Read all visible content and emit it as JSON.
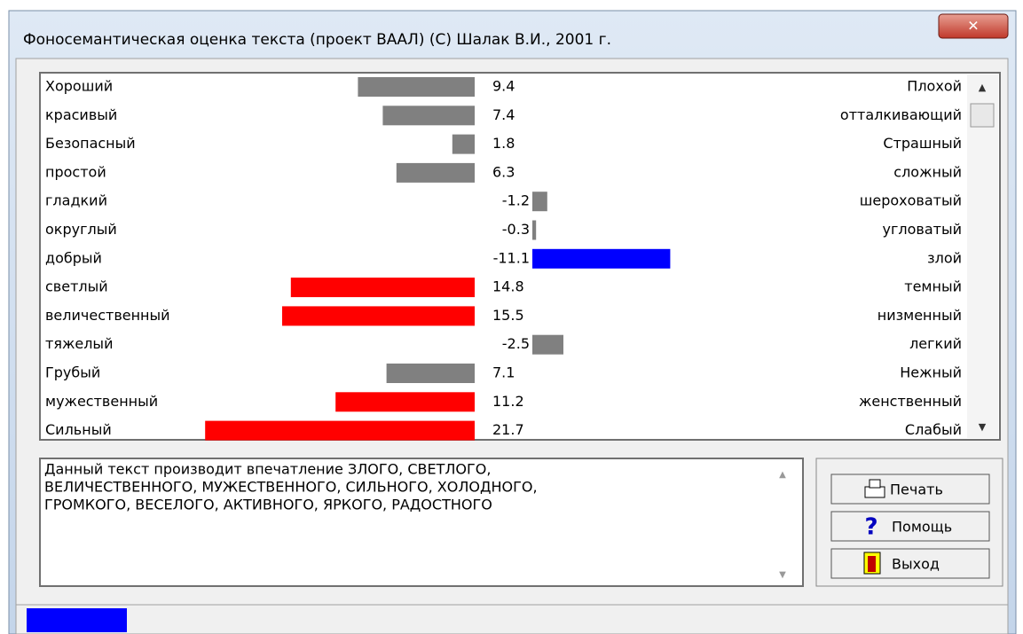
{
  "window": {
    "title": "Фоносемантическая оценка текста (проект ВААЛ) (С) Шалак В.И., 2001 г."
  },
  "scales": {
    "rows": [
      {
        "left": "Хороший",
        "value": 9.4,
        "right": "Плохой",
        "color": "#808080"
      },
      {
        "left": "красивый",
        "value": 7.4,
        "right": "отталкивающий",
        "color": "#808080"
      },
      {
        "left": "Безопасный",
        "value": 1.8,
        "right": "Страшный",
        "color": "#808080"
      },
      {
        "left": "простой",
        "value": 6.3,
        "right": "сложный",
        "color": "#808080"
      },
      {
        "left": "гладкий",
        "value": -1.2,
        "right": "шероховатый",
        "color": "#808080"
      },
      {
        "left": "округлый",
        "value": -0.3,
        "right": "угловатый",
        "color": "#808080"
      },
      {
        "left": "добрый",
        "value": -11.1,
        "right": "злой",
        "color": "#0000ff"
      },
      {
        "left": "светлый",
        "value": 14.8,
        "right": "темный",
        "color": "#ff0000"
      },
      {
        "left": "величественный",
        "value": 15.5,
        "right": "низменный",
        "color": "#ff0000"
      },
      {
        "left": "тяжелый",
        "value": -2.5,
        "right": "легкий",
        "color": "#808080"
      },
      {
        "left": "Грубый",
        "value": 7.1,
        "right": "Нежный",
        "color": "#808080"
      },
      {
        "left": "мужественный",
        "value": 11.2,
        "right": "женственный",
        "color": "#ff0000"
      },
      {
        "left": "Сильный",
        "value": 21.7,
        "right": "Слабый",
        "color": "#ff0000"
      }
    ]
  },
  "summary": {
    "lines": [
      "Данный текст производит впечатление  ЗЛОГО, СВЕТЛОГО,",
      "ВЕЛИЧЕСТВЕННОГО, МУЖЕСТВЕННОГО, СИЛЬНОГО, ХОЛОДНОГО,",
      "ГРОМКОГО, ВЕСЕЛОГО, АКТИВНОГО, ЯРКОГО, РАДОСТНОГО"
    ]
  },
  "buttons": [
    "Печать",
    "Помощь",
    "Выход"
  ]
}
